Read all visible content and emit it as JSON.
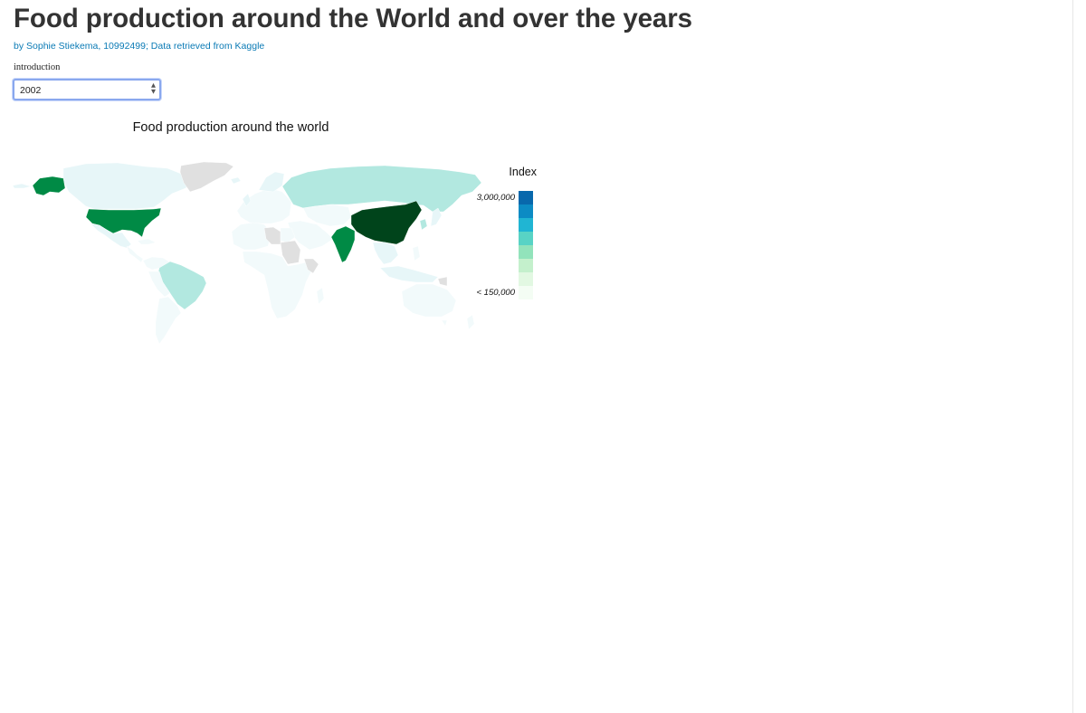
{
  "header": {
    "title": "Food production around the World and over the years",
    "byline": "by Sophie Stiekema, 10992499; Data retrieved from Kaggle"
  },
  "nav": {
    "intro_link": "introduction"
  },
  "year_select": {
    "value": "2002"
  },
  "map": {
    "title": "Food production around the world",
    "legend": {
      "title": "Index",
      "max_label": "3,000,000",
      "min_label": "< 150,000",
      "colors": [
        "#0868ac",
        "#0c8bc4",
        "#20b5d3",
        "#58d3c5",
        "#92e3bb",
        "#c4f0cc",
        "#e2f8e2",
        "#f4fdf4"
      ]
    },
    "colors": {
      "no_data": "#e0e0e0",
      "base": "#e7f6f8",
      "very_light": "#f2fafb",
      "light_teal": "#b2e8e0",
      "medium_green": "#008a45",
      "dark_green": "#00441b"
    }
  }
}
